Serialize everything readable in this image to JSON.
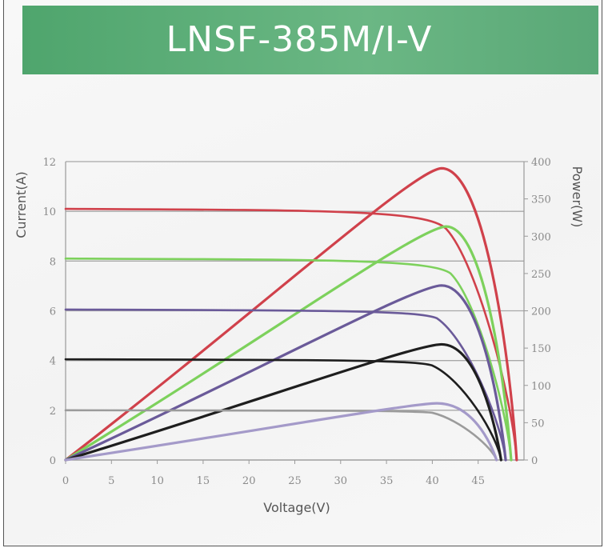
{
  "banner": {
    "title": "LNSF-385M/I-V"
  },
  "chart_data": {
    "type": "line",
    "xlabel": "Voltage(V)",
    "ylabel": "Current(A)",
    "y2label": "Power(W)",
    "xlim": [
      0,
      50
    ],
    "ylim": [
      0,
      12
    ],
    "y2lim": [
      0,
      400
    ],
    "xticks": [
      "0",
      "5",
      "10",
      "15",
      "20",
      "25",
      "30",
      "35",
      "40",
      "45"
    ],
    "yticks": [
      "0",
      "2",
      "4",
      "6",
      "8",
      "10",
      "12"
    ],
    "y2ticks": [
      "0",
      "50",
      "100",
      "150",
      "200",
      "250",
      "300",
      "350",
      "400"
    ],
    "grid": "horizontal",
    "colors": {
      "s1000": "#d0414b",
      "s800": "#7dd15c",
      "s600": "#6a5a99",
      "s400": "#1e1e1e",
      "s200": "#a49ac9",
      "s200_iv": "#9b9b9b"
    },
    "series": [
      {
        "key": "s1000",
        "current_curve": {
          "isc": 10.1,
          "voc": 49.2,
          "knee_v": 41.5,
          "knee_i": 9.3
        },
        "power_curve": {
          "peak_v": 41.0,
          "peak_w": 391
        }
      },
      {
        "key": "s800",
        "current_curve": {
          "isc": 8.1,
          "voc": 48.6,
          "knee_v": 42.0,
          "knee_i": 7.5
        },
        "power_curve": {
          "peak_v": 41.5,
          "peak_w": 313
        }
      },
      {
        "key": "s600",
        "current_curve": {
          "isc": 6.05,
          "voc": 48.0,
          "knee_v": 40.5,
          "knee_i": 5.7
        },
        "power_curve": {
          "peak_v": 41.0,
          "peak_w": 234
        }
      },
      {
        "key": "s400",
        "current_curve": {
          "isc": 4.05,
          "voc": 47.5,
          "knee_v": 40.0,
          "knee_i": 3.8
        },
        "power_curve": {
          "peak_v": 41.0,
          "peak_w": 155
        }
      },
      {
        "key": "s200",
        "current_curve": {
          "isc": 2.0,
          "voc": 47.0,
          "knee_v": 40.0,
          "knee_i": 1.9,
          "color_key": "s200_iv"
        },
        "power_curve": {
          "peak_v": 40.5,
          "peak_w": 76
        }
      }
    ]
  }
}
